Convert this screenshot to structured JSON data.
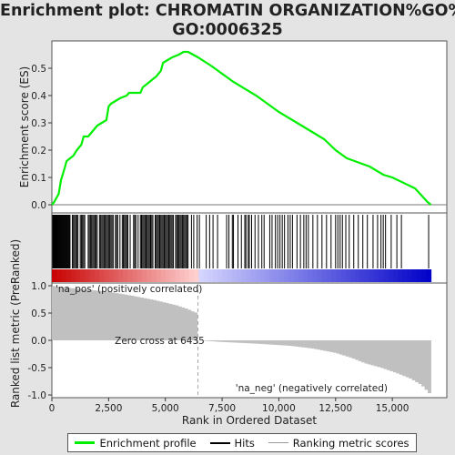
{
  "title_line1": "Enrichment plot: CHROMATIN ORGANIZATION%GO%",
  "title_line2": "GO:0006325",
  "legend": {
    "enrichment_profile": "Enrichment profile",
    "hits": "Hits",
    "ranking_metric_scores": "Ranking metric scores"
  },
  "colors": {
    "enrichment_line": "#00ee00",
    "hits": "#000000",
    "ranking_bars": "#c0c0c0",
    "positive_label": "#ff0000",
    "negative_label": "#0000ff",
    "zero_cross_line": "#aaaaaa"
  },
  "chart_data": [
    {
      "type": "line",
      "name": "enrichment-score",
      "ylabel": "Enrichment score (ES)",
      "xlim": [
        0,
        17400
      ],
      "ylim": [
        -0.03,
        0.6
      ],
      "yticks": [
        0.0,
        0.1,
        0.2,
        0.3,
        0.4,
        0.5
      ],
      "grid": false,
      "points": [
        [
          0,
          0
        ],
        [
          100,
          0.01
        ],
        [
          300,
          0.04
        ],
        [
          400,
          0.09
        ],
        [
          550,
          0.13
        ],
        [
          650,
          0.16
        ],
        [
          800,
          0.17
        ],
        [
          950,
          0.18
        ],
        [
          1100,
          0.2
        ],
        [
          1300,
          0.22
        ],
        [
          1400,
          0.25
        ],
        [
          1600,
          0.25
        ],
        [
          1800,
          0.27
        ],
        [
          2000,
          0.29
        ],
        [
          2200,
          0.3
        ],
        [
          2400,
          0.31
        ],
        [
          2500,
          0.36
        ],
        [
          2600,
          0.37
        ],
        [
          2800,
          0.38
        ],
        [
          3000,
          0.39
        ],
        [
          3300,
          0.4
        ],
        [
          3400,
          0.41
        ],
        [
          3600,
          0.41
        ],
        [
          3900,
          0.41
        ],
        [
          4000,
          0.43
        ],
        [
          4300,
          0.45
        ],
        [
          4600,
          0.47
        ],
        [
          4800,
          0.49
        ],
        [
          4900,
          0.52
        ],
        [
          5100,
          0.53
        ],
        [
          5300,
          0.54
        ],
        [
          5600,
          0.55
        ],
        [
          5800,
          0.56
        ],
        [
          6000,
          0.56
        ],
        [
          6435,
          0.54
        ],
        [
          7000,
          0.51
        ],
        [
          8000,
          0.45
        ],
        [
          9000,
          0.4
        ],
        [
          10000,
          0.34
        ],
        [
          11000,
          0.29
        ],
        [
          12000,
          0.24
        ],
        [
          12500,
          0.2
        ],
        [
          13000,
          0.17
        ],
        [
          14000,
          0.14
        ],
        [
          14600,
          0.11
        ],
        [
          15000,
          0.1
        ],
        [
          16000,
          0.06
        ],
        [
          16550,
          0.01
        ],
        [
          16700,
          0.0
        ]
      ]
    },
    {
      "type": "hits",
      "name": "gene-set-hits",
      "hit_ranks": [
        40,
        80,
        120,
        160,
        200,
        240,
        280,
        320,
        360,
        400,
        440,
        480,
        520,
        560,
        600,
        640,
        680,
        720,
        760,
        800,
        900,
        950,
        1000,
        1050,
        1100,
        1150,
        1250,
        1300,
        1350,
        1400,
        1450,
        1600,
        1650,
        1700,
        1750,
        1800,
        1850,
        1900,
        1950,
        2000,
        2100,
        2150,
        2200,
        2250,
        2300,
        2350,
        2400,
        2450,
        2500,
        2550,
        2600,
        2650,
        2700,
        2800,
        2850,
        2900,
        3000,
        3100,
        3150,
        3200,
        3250,
        3300,
        3350,
        3450,
        3600,
        3650,
        3700,
        3800,
        3900,
        3950,
        4000,
        4050,
        4100,
        4150,
        4200,
        4250,
        4300,
        4350,
        4400,
        4450,
        4550,
        4600,
        4650,
        4700,
        4750,
        4800,
        4850,
        4900,
        4950,
        5000,
        5050,
        5100,
        5150,
        5200,
        5250,
        5300,
        5350,
        5450,
        5500,
        5550,
        5600,
        5650,
        5700,
        5750,
        5800,
        5850,
        5900,
        5950,
        6000,
        6150,
        6250,
        6400,
        6500,
        6800,
        6950,
        7100,
        7300,
        7700,
        7800,
        7950,
        8000,
        8200,
        8350,
        8500,
        8550,
        8650,
        8700,
        8800,
        8950,
        9100,
        9250,
        9350,
        9600,
        9700,
        9850,
        9950,
        10050,
        10150,
        10250,
        10400,
        10500,
        10600,
        10800,
        10950,
        11100,
        11200,
        11300,
        11500,
        11700,
        11900,
        12100,
        12300,
        12500,
        12600,
        12700,
        12800,
        12950,
        13100,
        13300,
        13500,
        13700,
        13900,
        14150,
        14350,
        14500,
        14600,
        14700,
        14950,
        15200,
        15400,
        16600
      ]
    },
    {
      "type": "bar",
      "name": "ranked-list-metric",
      "ylabel": "Ranked list metric (PreRanked)",
      "xlabel": "Rank in Ordered Dataset",
      "xlim": [
        0,
        17400
      ],
      "ylim": [
        -1.05,
        1.05
      ],
      "xticks": [
        0,
        2500,
        5000,
        7500,
        10000,
        12500,
        15000
      ],
      "xtick_labels": [
        "0",
        "2,500",
        "5,000",
        "7,500",
        "10,000",
        "12,500",
        "15,000"
      ],
      "yticks": [
        1.0,
        0.5,
        0.0,
        -0.5,
        -1.0
      ],
      "zero_cross": 6435,
      "zero_cross_label": "Zero cross at 6435",
      "positive_label": "'na_pos' (positively correlated)",
      "negative_label": "'na_neg' (negatively correlated)",
      "total_ranks": 16700,
      "profile": [
        [
          0,
          1.0
        ],
        [
          300,
          0.98
        ],
        [
          800,
          0.96
        ],
        [
          1500,
          0.93
        ],
        [
          2500,
          0.89
        ],
        [
          3500,
          0.82
        ],
        [
          4500,
          0.74
        ],
        [
          5500,
          0.64
        ],
        [
          6000,
          0.57
        ],
        [
          6300,
          0.51
        ],
        [
          6435,
          0.0
        ],
        [
          7500,
          -0.03
        ],
        [
          9000,
          -0.06
        ],
        [
          10500,
          -0.1
        ],
        [
          11500,
          -0.15
        ],
        [
          12500,
          -0.23
        ],
        [
          13200,
          -0.32
        ],
        [
          13800,
          -0.42
        ],
        [
          14500,
          -0.5
        ],
        [
          15200,
          -0.6
        ],
        [
          15800,
          -0.7
        ],
        [
          16300,
          -0.82
        ],
        [
          16700,
          -1.0
        ]
      ]
    }
  ]
}
